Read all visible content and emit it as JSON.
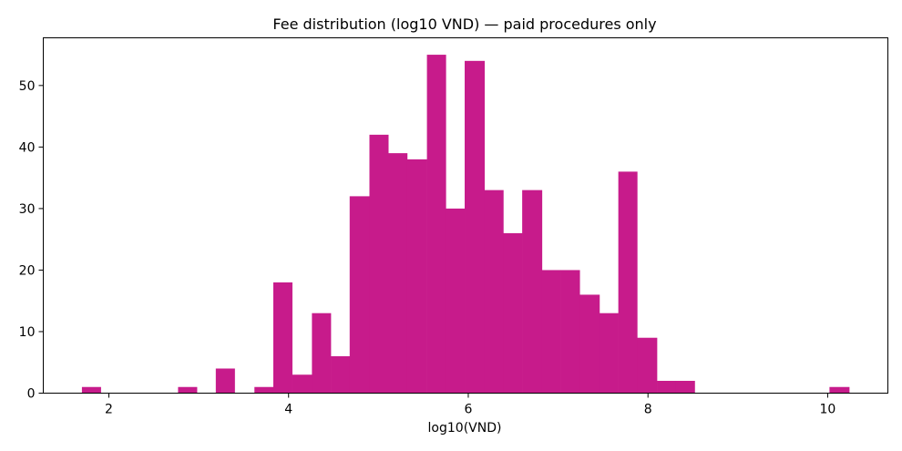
{
  "chart_data": {
    "type": "bar",
    "subtype": "histogram",
    "title": "Fee distribution (log10 VND) — paid procedures only",
    "xlabel": "log10(VND)",
    "ylabel": "",
    "xlim": [
      1.27,
      10.67
    ],
    "ylim": [
      0,
      57.75
    ],
    "x_ticks": [
      2,
      4,
      6,
      8,
      10
    ],
    "y_ticks": [
      0,
      10,
      20,
      30,
      40,
      50
    ],
    "grid": false,
    "legend": "none",
    "bar_color": "#c71b8b",
    "bins": [
      {
        "start": 1.7,
        "end": 1.91,
        "count": 1
      },
      {
        "start": 2.77,
        "end": 2.98,
        "count": 1
      },
      {
        "start": 3.19,
        "end": 3.4,
        "count": 4
      },
      {
        "start": 3.62,
        "end": 3.83,
        "count": 1
      },
      {
        "start": 3.83,
        "end": 4.04,
        "count": 18
      },
      {
        "start": 4.04,
        "end": 4.26,
        "count": 3
      },
      {
        "start": 4.26,
        "end": 4.47,
        "count": 13
      },
      {
        "start": 4.47,
        "end": 4.68,
        "count": 6
      },
      {
        "start": 4.68,
        "end": 4.9,
        "count": 32
      },
      {
        "start": 4.9,
        "end": 5.11,
        "count": 42
      },
      {
        "start": 5.11,
        "end": 5.32,
        "count": 39
      },
      {
        "start": 5.32,
        "end": 5.54,
        "count": 38
      },
      {
        "start": 5.54,
        "end": 5.75,
        "count": 55
      },
      {
        "start": 5.75,
        "end": 5.96,
        "count": 30
      },
      {
        "start": 5.96,
        "end": 6.18,
        "count": 54
      },
      {
        "start": 6.18,
        "end": 6.39,
        "count": 33
      },
      {
        "start": 6.39,
        "end": 6.6,
        "count": 26
      },
      {
        "start": 6.6,
        "end": 6.82,
        "count": 33
      },
      {
        "start": 6.82,
        "end": 7.03,
        "count": 20
      },
      {
        "start": 7.03,
        "end": 7.24,
        "count": 20
      },
      {
        "start": 7.24,
        "end": 7.46,
        "count": 16
      },
      {
        "start": 7.46,
        "end": 7.67,
        "count": 13
      },
      {
        "start": 7.67,
        "end": 7.88,
        "count": 36
      },
      {
        "start": 7.88,
        "end": 8.1,
        "count": 9
      },
      {
        "start": 8.1,
        "end": 8.31,
        "count": 2
      },
      {
        "start": 8.31,
        "end": 8.52,
        "count": 2
      },
      {
        "start": 10.02,
        "end": 10.24,
        "count": 1
      }
    ]
  }
}
